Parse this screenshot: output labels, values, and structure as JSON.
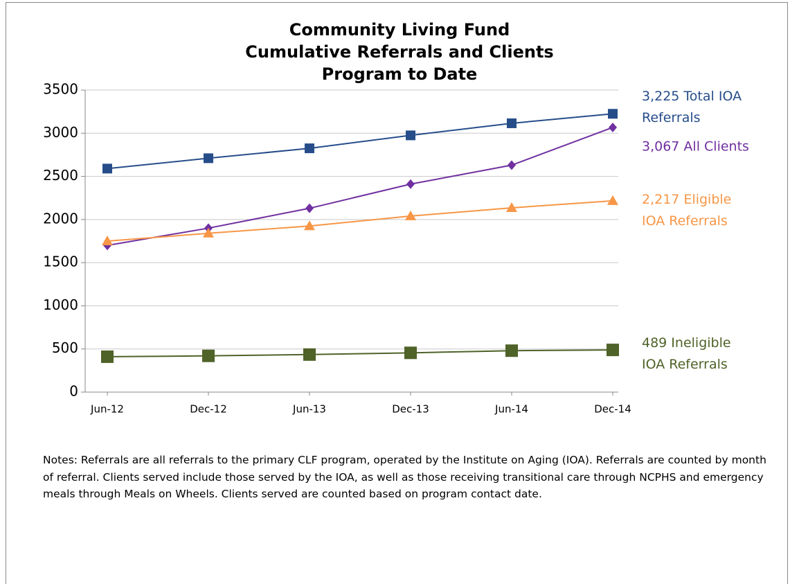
{
  "chart_data": {
    "type": "line",
    "title": [
      "Community Living Fund",
      "Cumulative Referrals and Clients",
      "Program to Date"
    ],
    "categories": [
      "Jun-12",
      "Dec-12",
      "Jun-13",
      "Dec-13",
      "Jun-14",
      "Dec-14"
    ],
    "series": [
      {
        "name": "Total IOA Referrals",
        "color": "#264d8a",
        "marker": "square",
        "values": [
          2590,
          2710,
          2825,
          2975,
          3115,
          3225
        ],
        "label": [
          "3,225 Total IOA",
          "Referrals"
        ]
      },
      {
        "name": "All Clients",
        "color": "#7030a0",
        "marker": "diamond",
        "values": [
          1700,
          1900,
          2130,
          2410,
          2630,
          3067
        ],
        "label": [
          "3,067 All Clients"
        ]
      },
      {
        "name": "Eligible IOA Referrals",
        "color": "#f79646",
        "marker": "triangle",
        "values": [
          1750,
          1840,
          1925,
          2040,
          2135,
          2217
        ],
        "label": [
          "2,217 Eligible",
          "IOA Referrals"
        ]
      },
      {
        "name": "Ineligible IOA Referrals",
        "color": "#4f6228",
        "marker": "bigsquare",
        "values": [
          410,
          420,
          435,
          455,
          480,
          489
        ],
        "label": [
          "489 Ineligible",
          "IOA Referrals"
        ]
      }
    ],
    "ylim": [
      0,
      3500
    ],
    "yticks": [
      0,
      500,
      1000,
      1500,
      2000,
      2500,
      3000,
      3500
    ],
    "grid": true,
    "notes": "Notes: Referrals are all referrals to the primary CLF program, operated by the Institute on Aging (IOA).  Referrals are counted by month of referral.  Clients served include those served by the IOA, as well as those receiving transitional care through NCPHS and emergency meals through Meals on Wheels. Clients served are counted based on program contact date."
  }
}
